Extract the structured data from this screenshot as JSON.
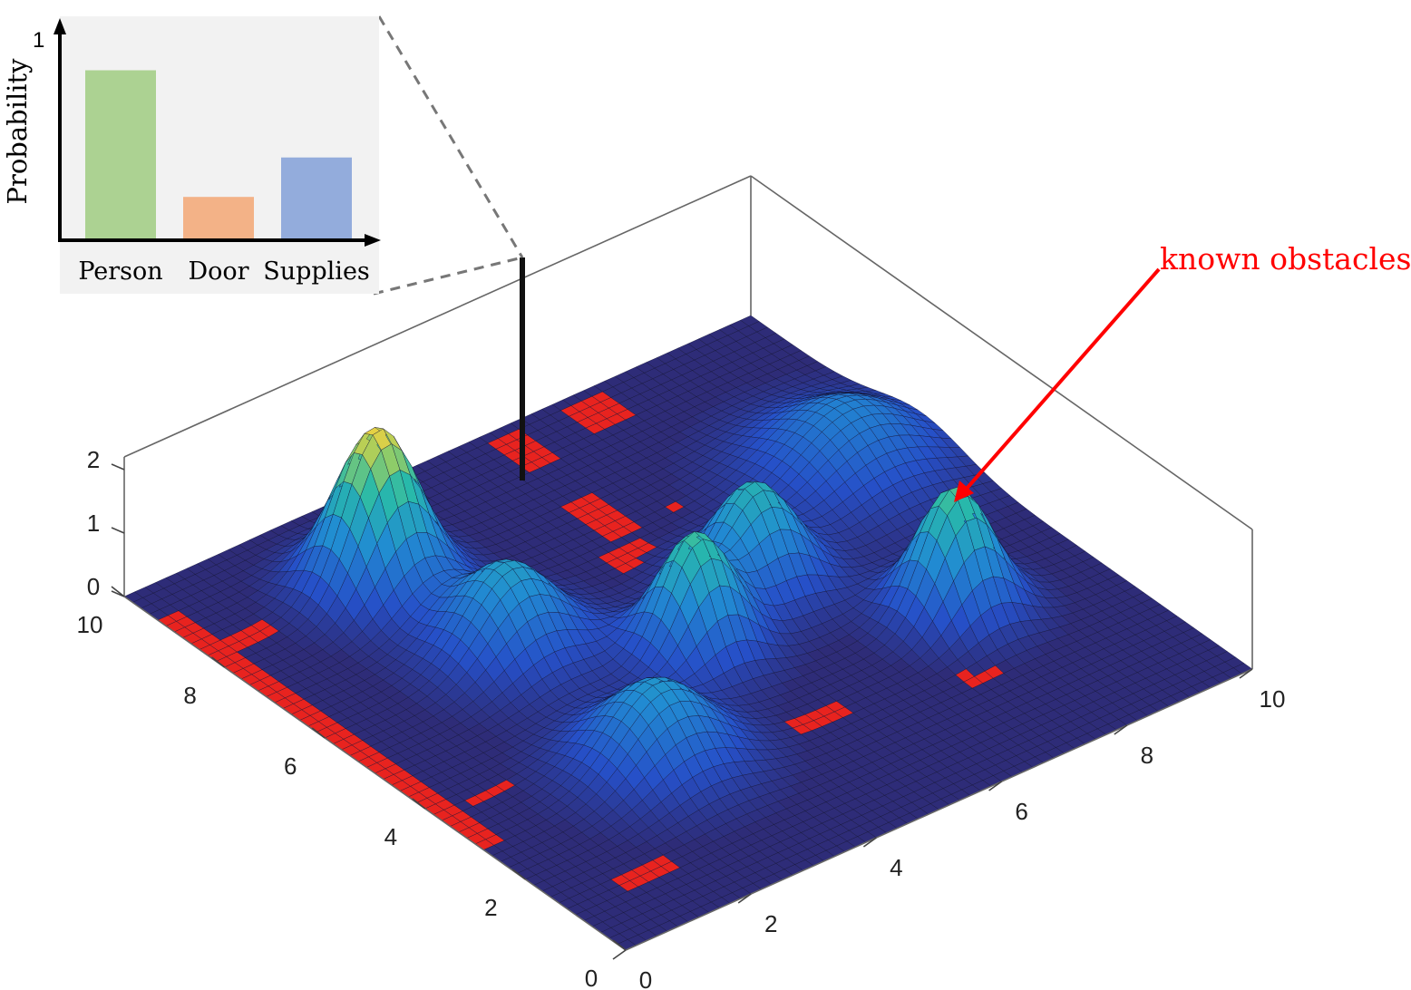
{
  "chart_data": [
    {
      "type": "surface3d",
      "axes": {
        "x": {
          "range": [
            0,
            10
          ],
          "ticks": [
            "0",
            "2",
            "4",
            "6",
            "8",
            "10"
          ]
        },
        "y": {
          "range": [
            0,
            10
          ],
          "ticks": [
            "0",
            "2",
            "4",
            "6",
            "8",
            "10"
          ]
        },
        "z": {
          "range": [
            0,
            2
          ],
          "ticks": [
            "0",
            "1",
            "2"
          ]
        }
      },
      "peaks": [
        {
          "x": 2.6,
          "y": 8.2,
          "height": 2.5,
          "sigma": 0.55
        },
        {
          "x": 4.8,
          "y": 4.6,
          "height": 1.85,
          "sigma": 0.5
        },
        {
          "x": 6.3,
          "y": 5.3,
          "height": 1.6,
          "sigma": 0.55
        },
        {
          "x": 8.8,
          "y": 6.6,
          "height": 1.0,
          "sigma": 0.85
        },
        {
          "x": 3.0,
          "y": 6.1,
          "height": 1.35,
          "sigma": 0.65
        },
        {
          "x": 2.9,
          "y": 3.0,
          "height": 1.25,
          "sigma": 0.7
        },
        {
          "x": 7.9,
          "y": 3.3,
          "height": 1.95,
          "sigma": 0.5
        }
      ],
      "obstacles": [
        {
          "x": [
            6.8,
            7.5
          ],
          "y": [
            9.2,
            9.8
          ]
        },
        {
          "x": [
            2.8,
            3.8
          ],
          "y": [
            9.6,
            9.9
          ]
        },
        {
          "x": [
            3.7,
            4.0
          ],
          "y": [
            8.6,
            9.6
          ]
        },
        {
          "x": [
            0.0,
            0.4
          ],
          "y": [
            2.8,
            9.4
          ]
        },
        {
          "x": [
            0.4,
            2.3
          ],
          "y": [
            8.1,
            8.5
          ]
        },
        {
          "x": [
            3.6,
            4.4
          ],
          "y": [
            5.8,
            6.3
          ]
        },
        {
          "x": [
            2.8,
            3.2
          ],
          "y": [
            3.6,
            6.2
          ]
        },
        {
          "x": [
            0.9,
            1.6
          ],
          "y": [
            1.0,
            1.3
          ]
        },
        {
          "x": [
            5.5,
            6.0
          ],
          "y": [
            7.1,
            8.2
          ]
        },
        {
          "x": [
            3.9,
            4.4
          ],
          "y": [
            1.8,
            2.4
          ]
        },
        {
          "x": [
            4.7,
            5.5
          ],
          "y": [
            2.3,
            2.7
          ]
        },
        {
          "x": [
            1.6,
            3.0
          ],
          "y": [
            4.4,
            4.8
          ]
        },
        {
          "x": [
            0.5,
            4.4
          ],
          "y": [
            3.6,
            3.9
          ]
        },
        {
          "x": [
            5.6,
            6.1
          ],
          "y": [
            9.0,
            9.8
          ]
        },
        {
          "x": [
            6.5,
            7.2
          ],
          "y": [
            7.1,
            7.4
          ]
        },
        {
          "x": [
            5.1,
            5.8
          ],
          "y": [
            5.9,
            7.0
          ]
        },
        {
          "x": [
            7.0,
            7.5
          ],
          "y": [
            1.8,
            3.0
          ]
        },
        {
          "x": [
            7.8,
            8.3
          ],
          "y": [
            2.0,
            2.3
          ]
        },
        {
          "x": [
            8.6,
            8.8
          ],
          "y": [
            2.7,
            2.8
          ]
        }
      ],
      "annotation": {
        "text": "known obstacles",
        "color": "#ff0000"
      },
      "colors": {
        "floor": "#2e2c78",
        "obstacle": "#e8231f",
        "mesh": "#111133"
      }
    },
    {
      "type": "bar",
      "categories": [
        "Person",
        "Door",
        "Supplies"
      ],
      "values": [
        0.81,
        0.2,
        0.39
      ],
      "ylabel": "Probability",
      "ylim": [
        0,
        1
      ],
      "y_tick": "1",
      "colors": [
        "#acd292",
        "#f3b287",
        "#93acdc"
      ],
      "panel_color": "#f2f2f2"
    }
  ]
}
